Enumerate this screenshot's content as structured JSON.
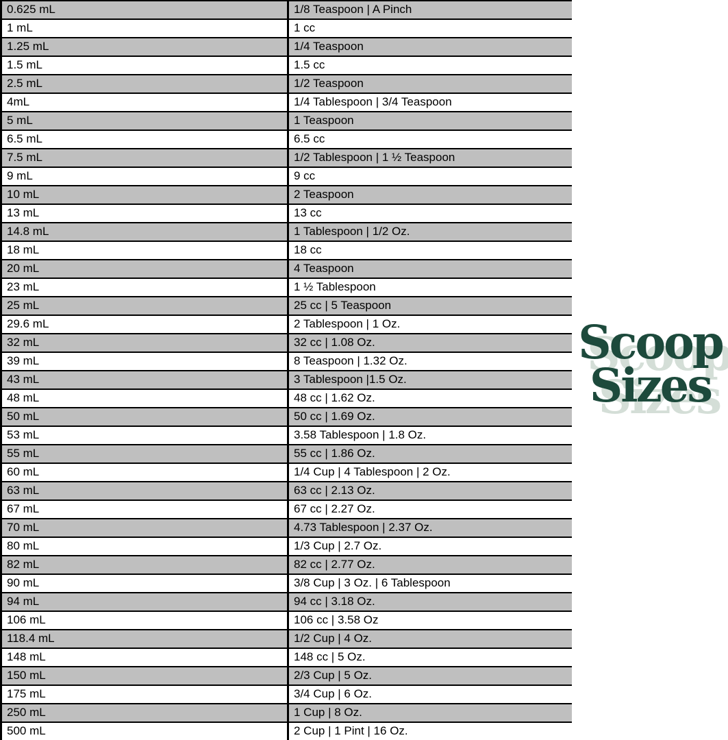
{
  "page": {
    "background_color": "#ffffff"
  },
  "logo": {
    "line1": "Scoop",
    "line2": "Sizes",
    "text_color": "#1d4a3c",
    "shadow_color": "#d4ded7"
  },
  "table": {
    "alt_row_color": "#bfbfbf",
    "border_color": "#000000",
    "rows": [
      {
        "ml": "0.625 mL",
        "equivalent": "1/8 Teaspoon | A Pinch"
      },
      {
        "ml": "1 mL",
        "equivalent": "1 cc"
      },
      {
        "ml": "1.25 mL",
        "equivalent": "1/4 Teaspoon"
      },
      {
        "ml": "1.5 mL",
        "equivalent": "1.5 cc"
      },
      {
        "ml": "2.5 mL",
        "equivalent": "1/2 Teaspoon"
      },
      {
        "ml": "4mL",
        "equivalent": "1/4 Tablespoon | 3/4 Teaspoon"
      },
      {
        "ml": "5 mL",
        "equivalent": "1 Teaspoon"
      },
      {
        "ml": "6.5 mL",
        "equivalent": "6.5 cc"
      },
      {
        "ml": "7.5 mL",
        "equivalent": "1/2 Tablespoon | 1 ½ Teaspoon"
      },
      {
        "ml": "9 mL",
        "equivalent": "9 cc"
      },
      {
        "ml": "10 mL",
        "equivalent": "2 Teaspoon"
      },
      {
        "ml": "13 mL",
        "equivalent": "13 cc"
      },
      {
        "ml": "14.8 mL",
        "equivalent": "1 Tablespoon | 1/2 Oz."
      },
      {
        "ml": "18 mL",
        "equivalent": "18 cc"
      },
      {
        "ml": "20 mL",
        "equivalent": "4 Teaspoon"
      },
      {
        "ml": "23 mL",
        "equivalent": "1 ½ Tablespoon"
      },
      {
        "ml": "25 mL",
        "equivalent": "25 cc | 5 Teaspoon"
      },
      {
        "ml": "29.6 mL",
        "equivalent": "2 Tablespoon | 1 Oz."
      },
      {
        "ml": "32 mL",
        "equivalent": "32 cc | 1.08 Oz."
      },
      {
        "ml": "39 mL",
        "equivalent": "8 Teaspoon | 1.32 Oz."
      },
      {
        "ml": "43 mL",
        "equivalent": "3 Tablespoon |1.5 Oz."
      },
      {
        "ml": "48 mL",
        "equivalent": "48 cc | 1.62 Oz."
      },
      {
        "ml": "50 mL",
        "equivalent": "50 cc | 1.69 Oz."
      },
      {
        "ml": "53 mL",
        "equivalent": "3.58 Tablespoon | 1.8 Oz."
      },
      {
        "ml": "55 mL",
        "equivalent": "55 cc | 1.86 Oz."
      },
      {
        "ml": "60 mL",
        "equivalent": "1/4 Cup | 4 Tablespoon | 2 Oz."
      },
      {
        "ml": "63 mL",
        "equivalent": "63 cc | 2.13 Oz."
      },
      {
        "ml": "67 mL",
        "equivalent": "67 cc | 2.27 Oz."
      },
      {
        "ml": "70 mL",
        "equivalent": "4.73 Tablespoon | 2.37 Oz."
      },
      {
        "ml": "80 mL",
        "equivalent": "1/3 Cup | 2.7 Oz."
      },
      {
        "ml": "82 mL",
        "equivalent": "82 cc | 2.77 Oz."
      },
      {
        "ml": "90 mL",
        "equivalent": "3/8 Cup | 3 Oz. | 6 Tablespoon"
      },
      {
        "ml": "94 mL",
        "equivalent": "94 cc | 3.18 Oz."
      },
      {
        "ml": "106 mL",
        "equivalent": "106 cc | 3.58 Oz"
      },
      {
        "ml": "118.4 mL",
        "equivalent": "1/2 Cup | 4 Oz."
      },
      {
        "ml": "148 mL",
        "equivalent": "148 cc | 5 Oz."
      },
      {
        "ml": "150 mL",
        "equivalent": "2/3 Cup | 5 Oz."
      },
      {
        "ml": "175 mL",
        "equivalent": "3/4 Cup | 6 Oz."
      },
      {
        "ml": "250 mL",
        "equivalent": "1 Cup | 8 Oz."
      },
      {
        "ml": "500 mL",
        "equivalent": "2 Cup | 1 Pint | 16 Oz."
      }
    ]
  }
}
